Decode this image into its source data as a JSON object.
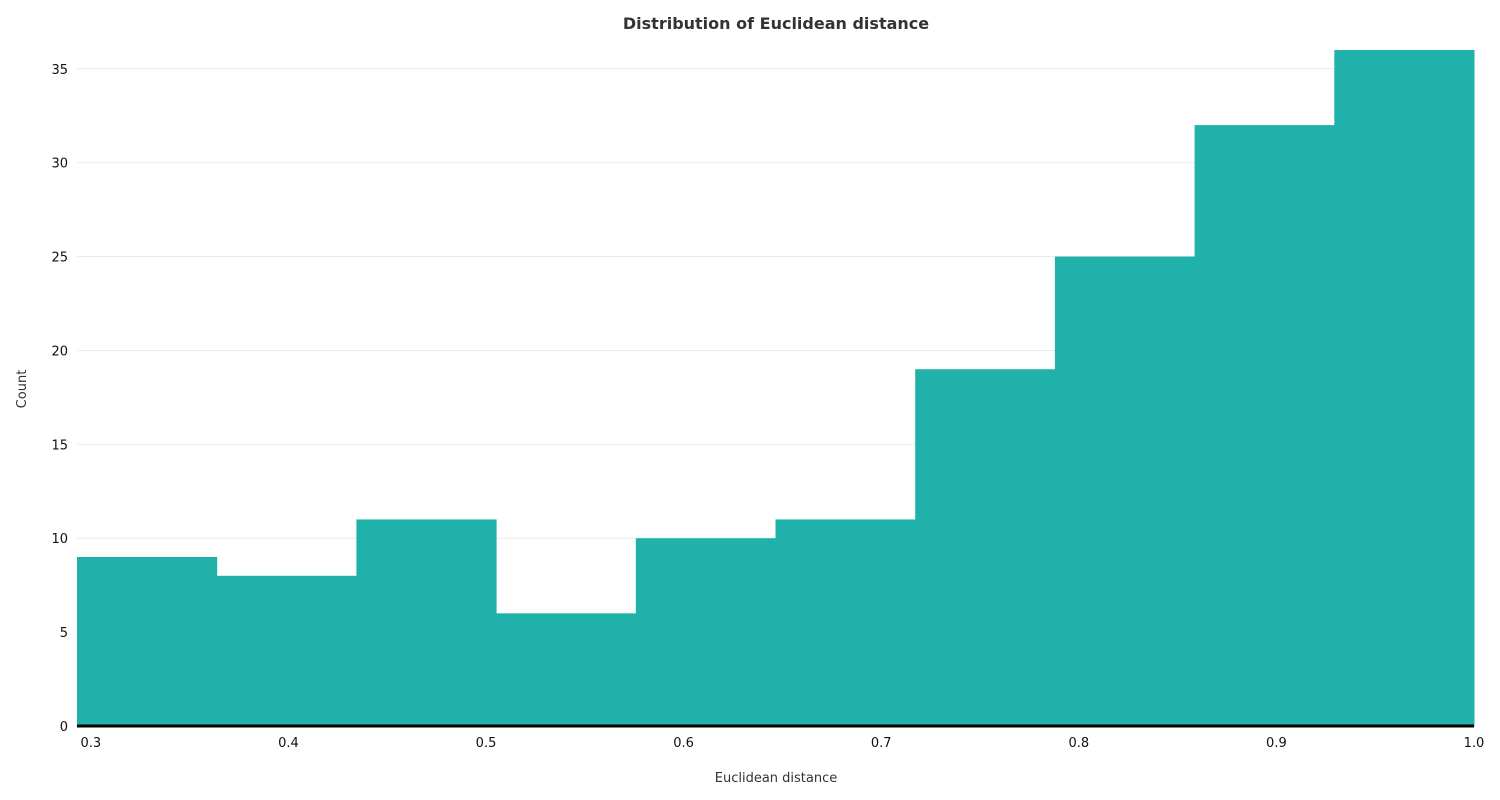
{
  "chart_data": {
    "type": "bar",
    "title": "Distribution of Euclidean distance",
    "xlabel": "Euclidean distance",
    "ylabel": "Count",
    "bin_edges": [
      0.293,
      0.3637,
      0.4344,
      0.5051,
      0.5758,
      0.6465,
      0.7172,
      0.7879,
      0.8586,
      0.9293,
      1.0
    ],
    "values": [
      9,
      8,
      11,
      6,
      10,
      11,
      19,
      25,
      32,
      36
    ],
    "xlim": [
      0.293,
      1.0
    ],
    "ylim": [
      0,
      36
    ],
    "xticks": [
      "0.3",
      "0.4",
      "0.5",
      "0.6",
      "0.7",
      "0.8",
      "0.9",
      "1.0"
    ],
    "yticks": [
      "0",
      "5",
      "10",
      "15",
      "20",
      "25",
      "30",
      "35"
    ],
    "grid": true,
    "bar_color": "#20b2aa"
  }
}
